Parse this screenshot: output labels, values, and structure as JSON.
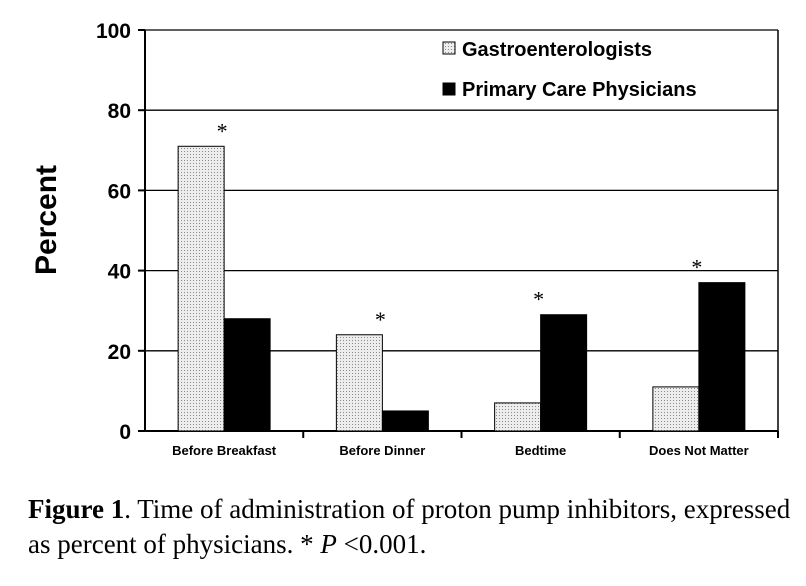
{
  "chart_data": {
    "type": "bar",
    "title": "",
    "xlabel": "",
    "ylabel": "Percent",
    "ylim": [
      0,
      100
    ],
    "yticks": [
      0,
      20,
      40,
      60,
      80,
      100
    ],
    "grid": true,
    "legend": "top-right",
    "categories": [
      "Before Breakfast",
      "Before Dinner",
      "Bedtime",
      "Does Not Matter"
    ],
    "series": [
      {
        "name": "Gastroenterologists",
        "values": [
          71,
          24,
          7,
          11
        ],
        "fill": "dotted-light-gray"
      },
      {
        "name": "Primary Care Physicians",
        "values": [
          28,
          5,
          29,
          37
        ],
        "fill": "#000000"
      }
    ],
    "annotations": [
      "*",
      "*",
      "*",
      "*"
    ]
  },
  "caption": {
    "label": "Figure 1",
    "text": ".  Time of administration of proton pump inhibitors, expressed as percent of physicians. ",
    "star": "*",
    "p_symbol": "P",
    "p_value": "<0.001."
  }
}
